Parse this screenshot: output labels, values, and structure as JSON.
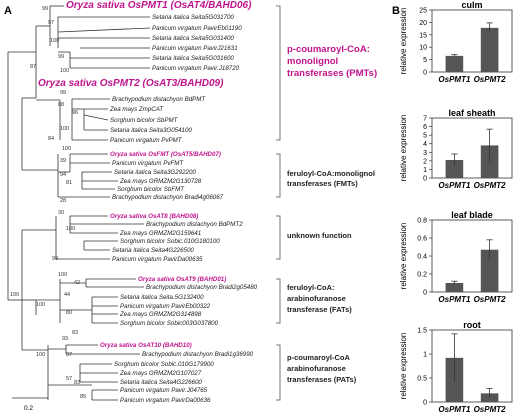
{
  "panels": {
    "a": "A",
    "b": "B"
  },
  "tree": {
    "scale_label": "0.2",
    "taxa": [
      {
        "text": "Oryza sativa OsPMT1 (OsAT4/BAHD06)",
        "highlight": true,
        "big": true
      },
      {
        "text": "Setaria italica Seita5G031700"
      },
      {
        "text": "Panicum virgatum PavirEb01190"
      },
      {
        "text": "Setaria italica Seita5G031400"
      },
      {
        "text": "Panicum virgatum PavirJ21631"
      },
      {
        "text": "Setaria italica Seita5G031600"
      },
      {
        "text": "Panicum virgatum Pavir.J18720"
      },
      {
        "text": "Oryza sativa OsPMT2 (OsAT3/BAHD09)",
        "highlight": true,
        "big": true
      },
      {
        "text": "Brachypodium distachyon BdPMT"
      },
      {
        "text": "Zea mays ZmpCAT"
      },
      {
        "text": "Sorghum bicolor SbPMT"
      },
      {
        "text": "Setaria italica Seita3G054100"
      },
      {
        "text": "Panicum virgatum PvPMT"
      },
      {
        "text": "Oryza sativa OsFMT (OsAT5/BAHD07)",
        "highlight": true
      },
      {
        "text": "Panicum virgatum PvFMT"
      },
      {
        "text": "Setaria italica Seita3G292200"
      },
      {
        "text": "Zea mays GRMZM2G130728"
      },
      {
        "text": "Sorghum bicolor SbFMT"
      },
      {
        "text": "Brachypodium distachyon Bradi4g06067"
      },
      {
        "text": "Oryza sativa OsAT8 (BAHD08)",
        "highlight": true
      },
      {
        "text": "Brachypodium distachyon BdPMT2"
      },
      {
        "text": "Zea mays GRMZM2G159641"
      },
      {
        "text": "Sorghum bicolor Sobic.010G180100"
      },
      {
        "text": "Setaria italica Seita4G226500"
      },
      {
        "text": "Panicum virgatum PavirDa00635"
      },
      {
        "text": "Oryza sativa OsAT9 (BAHD01)",
        "highlight": true
      },
      {
        "text": "Brachypodium distachyon Bradi2g05480"
      },
      {
        "text": "Setaria italica Seita.5G132400"
      },
      {
        "text": "Panicum virgatum PavirEb00322"
      },
      {
        "text": "Zea mays GRMZM2G314898"
      },
      {
        "text": "Sorghum bicolor Sobic003G037800"
      },
      {
        "text": "Oryza sativa OsAT10 (BAHD10)",
        "highlight": true
      },
      {
        "text": "Brachypodium distachyon Bradi1g36990"
      },
      {
        "text": "Sorghum bicolor Sobic.010G179900"
      },
      {
        "text": "Zea mays GRMZM2G107027"
      },
      {
        "text": "Setaria italica Seita4G226600"
      },
      {
        "text": "Panicum virgatum Pavir.J04765"
      },
      {
        "text": "Panicum virgatum PavirDa00636"
      }
    ],
    "support_values": [
      "99",
      "87",
      "97",
      "100",
      "99",
      "100",
      "84",
      "99",
      "88",
      "96",
      "100",
      "100",
      "39",
      "94",
      "81",
      "28",
      "30",
      "100",
      "99",
      "100",
      "100",
      "42",
      "44",
      "80",
      "83",
      "93",
      "37",
      "100",
      "57",
      "83",
      "85",
      "100"
    ],
    "groups": [
      {
        "lines": [
          "p-coumaroyl-CoA:",
          "monolignol",
          "transferases (PMTs)"
        ],
        "highlight": true
      },
      {
        "lines": [
          "feruloyl-CoA:monolignol",
          "transferases (FMTs)"
        ]
      },
      {
        "lines": [
          "unknown function"
        ]
      },
      {
        "lines": [
          "feruloyl-CoA:",
          "arabinofuranose",
          "transferase (FATs)"
        ]
      },
      {
        "lines": [
          "p-coumaroyl-CoA",
          "arabinofuranose",
          "transferases (PATs)"
        ]
      }
    ]
  },
  "chart_data": [
    {
      "type": "bar",
      "title": "culm",
      "categories": [
        "OsPMT1",
        "OsPMT2"
      ],
      "values": [
        6.5,
        17.8
      ],
      "errors": [
        0.5,
        2.0
      ],
      "ylabel": "relative expression",
      "ylim": [
        0,
        25
      ],
      "ticks": [
        0,
        5,
        10,
        15,
        20,
        25
      ]
    },
    {
      "type": "bar",
      "title": "leaf sheath",
      "categories": [
        "OsPMT1",
        "OsPMT2"
      ],
      "values": [
        2.1,
        3.8
      ],
      "errors": [
        0.7,
        1.9
      ],
      "ylabel": "relative expression",
      "ylim": [
        0,
        7
      ],
      "ticks": [
        0,
        1,
        2,
        3,
        4,
        5,
        6,
        7
      ]
    },
    {
      "type": "bar",
      "title": "leaf blade",
      "categories": [
        "OsPMT1",
        "OsPMT2"
      ],
      "values": [
        0.1,
        0.47
      ],
      "errors": [
        0.02,
        0.11
      ],
      "ylabel": "relative expression",
      "ylim": [
        0,
        0.8
      ],
      "ticks": [
        0,
        0.2,
        0.4,
        0.6,
        0.8
      ]
    },
    {
      "type": "bar",
      "title": "root",
      "categories": [
        "OsPMT1",
        "OsPMT2"
      ],
      "values": [
        0.92,
        0.18
      ],
      "errors": [
        0.5,
        0.1
      ],
      "ylabel": "relative expression",
      "ylim": [
        0,
        1.5
      ],
      "ticks": [
        0,
        0.5,
        1,
        1.5
      ]
    }
  ],
  "colors": {
    "highlight": "#c0148c",
    "bar": "#555555",
    "line": "#333333",
    "bracket": "#777777"
  }
}
